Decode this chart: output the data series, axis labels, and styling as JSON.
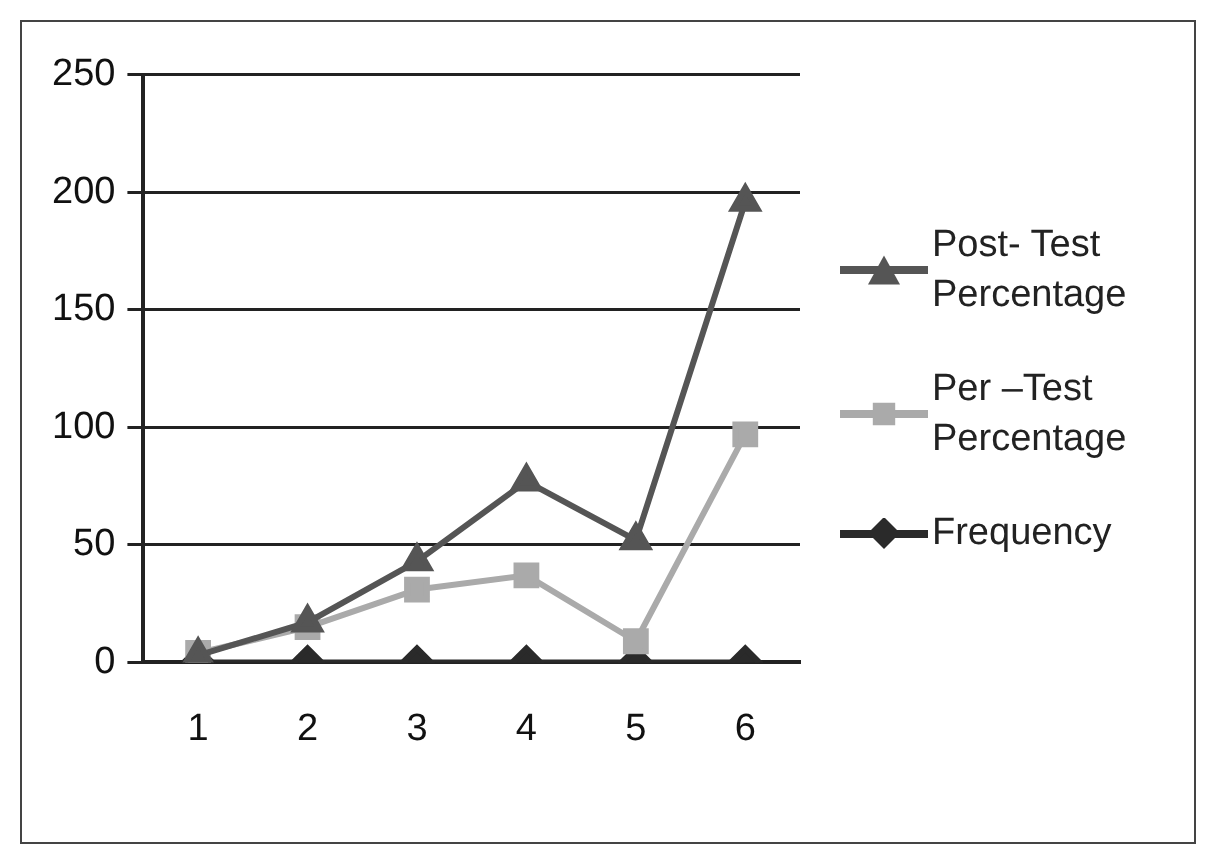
{
  "chart_data": {
    "type": "line",
    "categories": [
      "1",
      "2",
      "3",
      "4",
      "5",
      "6"
    ],
    "series": [
      {
        "name": "Post- Test Percentage",
        "color": "#555555",
        "marker": "triangle",
        "values": [
          3,
          17,
          43,
          77,
          52,
          196
        ]
      },
      {
        "name": "Per –Test Percentage",
        "color": "#aaaaaa",
        "marker": "square",
        "values": [
          4,
          15,
          31,
          37,
          9,
          97
        ]
      },
      {
        "name": "Frequency",
        "color": "#2a2a2a",
        "marker": "diamond",
        "values": [
          0,
          0,
          0,
          0,
          0,
          0
        ]
      }
    ],
    "ylim": [
      0,
      250
    ],
    "yticks": [
      0,
      50,
      100,
      150,
      200,
      250
    ],
    "grid": "y",
    "legend": "right"
  }
}
